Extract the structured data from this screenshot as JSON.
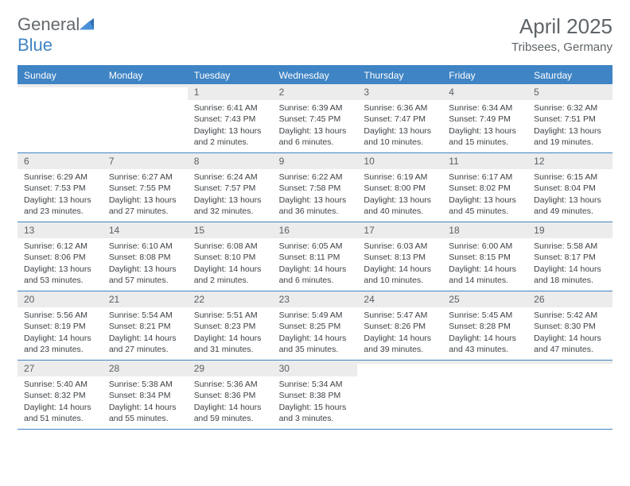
{
  "brand": {
    "part1": "General",
    "part2": "Blue"
  },
  "title": "April 2025",
  "location": "Tribsees, Germany",
  "colors": {
    "accent": "#3f84c4",
    "header_text": "#5f6569",
    "cell_bg_num": "#ececec",
    "text": "#3d4246"
  },
  "daynames": [
    "Sunday",
    "Monday",
    "Tuesday",
    "Wednesday",
    "Thursday",
    "Friday",
    "Saturday"
  ],
  "weeks": [
    [
      {
        "n": "",
        "sr": "",
        "ss": "",
        "dl": ""
      },
      {
        "n": "",
        "sr": "",
        "ss": "",
        "dl": ""
      },
      {
        "n": "1",
        "sr": "Sunrise: 6:41 AM",
        "ss": "Sunset: 7:43 PM",
        "dl": "Daylight: 13 hours and 2 minutes."
      },
      {
        "n": "2",
        "sr": "Sunrise: 6:39 AM",
        "ss": "Sunset: 7:45 PM",
        "dl": "Daylight: 13 hours and 6 minutes."
      },
      {
        "n": "3",
        "sr": "Sunrise: 6:36 AM",
        "ss": "Sunset: 7:47 PM",
        "dl": "Daylight: 13 hours and 10 minutes."
      },
      {
        "n": "4",
        "sr": "Sunrise: 6:34 AM",
        "ss": "Sunset: 7:49 PM",
        "dl": "Daylight: 13 hours and 15 minutes."
      },
      {
        "n": "5",
        "sr": "Sunrise: 6:32 AM",
        "ss": "Sunset: 7:51 PM",
        "dl": "Daylight: 13 hours and 19 minutes."
      }
    ],
    [
      {
        "n": "6",
        "sr": "Sunrise: 6:29 AM",
        "ss": "Sunset: 7:53 PM",
        "dl": "Daylight: 13 hours and 23 minutes."
      },
      {
        "n": "7",
        "sr": "Sunrise: 6:27 AM",
        "ss": "Sunset: 7:55 PM",
        "dl": "Daylight: 13 hours and 27 minutes."
      },
      {
        "n": "8",
        "sr": "Sunrise: 6:24 AM",
        "ss": "Sunset: 7:57 PM",
        "dl": "Daylight: 13 hours and 32 minutes."
      },
      {
        "n": "9",
        "sr": "Sunrise: 6:22 AM",
        "ss": "Sunset: 7:58 PM",
        "dl": "Daylight: 13 hours and 36 minutes."
      },
      {
        "n": "10",
        "sr": "Sunrise: 6:19 AM",
        "ss": "Sunset: 8:00 PM",
        "dl": "Daylight: 13 hours and 40 minutes."
      },
      {
        "n": "11",
        "sr": "Sunrise: 6:17 AM",
        "ss": "Sunset: 8:02 PM",
        "dl": "Daylight: 13 hours and 45 minutes."
      },
      {
        "n": "12",
        "sr": "Sunrise: 6:15 AM",
        "ss": "Sunset: 8:04 PM",
        "dl": "Daylight: 13 hours and 49 minutes."
      }
    ],
    [
      {
        "n": "13",
        "sr": "Sunrise: 6:12 AM",
        "ss": "Sunset: 8:06 PM",
        "dl": "Daylight: 13 hours and 53 minutes."
      },
      {
        "n": "14",
        "sr": "Sunrise: 6:10 AM",
        "ss": "Sunset: 8:08 PM",
        "dl": "Daylight: 13 hours and 57 minutes."
      },
      {
        "n": "15",
        "sr": "Sunrise: 6:08 AM",
        "ss": "Sunset: 8:10 PM",
        "dl": "Daylight: 14 hours and 2 minutes."
      },
      {
        "n": "16",
        "sr": "Sunrise: 6:05 AM",
        "ss": "Sunset: 8:11 PM",
        "dl": "Daylight: 14 hours and 6 minutes."
      },
      {
        "n": "17",
        "sr": "Sunrise: 6:03 AM",
        "ss": "Sunset: 8:13 PM",
        "dl": "Daylight: 14 hours and 10 minutes."
      },
      {
        "n": "18",
        "sr": "Sunrise: 6:00 AM",
        "ss": "Sunset: 8:15 PM",
        "dl": "Daylight: 14 hours and 14 minutes."
      },
      {
        "n": "19",
        "sr": "Sunrise: 5:58 AM",
        "ss": "Sunset: 8:17 PM",
        "dl": "Daylight: 14 hours and 18 minutes."
      }
    ],
    [
      {
        "n": "20",
        "sr": "Sunrise: 5:56 AM",
        "ss": "Sunset: 8:19 PM",
        "dl": "Daylight: 14 hours and 23 minutes."
      },
      {
        "n": "21",
        "sr": "Sunrise: 5:54 AM",
        "ss": "Sunset: 8:21 PM",
        "dl": "Daylight: 14 hours and 27 minutes."
      },
      {
        "n": "22",
        "sr": "Sunrise: 5:51 AM",
        "ss": "Sunset: 8:23 PM",
        "dl": "Daylight: 14 hours and 31 minutes."
      },
      {
        "n": "23",
        "sr": "Sunrise: 5:49 AM",
        "ss": "Sunset: 8:25 PM",
        "dl": "Daylight: 14 hours and 35 minutes."
      },
      {
        "n": "24",
        "sr": "Sunrise: 5:47 AM",
        "ss": "Sunset: 8:26 PM",
        "dl": "Daylight: 14 hours and 39 minutes."
      },
      {
        "n": "25",
        "sr": "Sunrise: 5:45 AM",
        "ss": "Sunset: 8:28 PM",
        "dl": "Daylight: 14 hours and 43 minutes."
      },
      {
        "n": "26",
        "sr": "Sunrise: 5:42 AM",
        "ss": "Sunset: 8:30 PM",
        "dl": "Daylight: 14 hours and 47 minutes."
      }
    ],
    [
      {
        "n": "27",
        "sr": "Sunrise: 5:40 AM",
        "ss": "Sunset: 8:32 PM",
        "dl": "Daylight: 14 hours and 51 minutes."
      },
      {
        "n": "28",
        "sr": "Sunrise: 5:38 AM",
        "ss": "Sunset: 8:34 PM",
        "dl": "Daylight: 14 hours and 55 minutes."
      },
      {
        "n": "29",
        "sr": "Sunrise: 5:36 AM",
        "ss": "Sunset: 8:36 PM",
        "dl": "Daylight: 14 hours and 59 minutes."
      },
      {
        "n": "30",
        "sr": "Sunrise: 5:34 AM",
        "ss": "Sunset: 8:38 PM",
        "dl": "Daylight: 15 hours and 3 minutes."
      },
      {
        "n": "",
        "sr": "",
        "ss": "",
        "dl": ""
      },
      {
        "n": "",
        "sr": "",
        "ss": "",
        "dl": ""
      },
      {
        "n": "",
        "sr": "",
        "ss": "",
        "dl": ""
      }
    ]
  ]
}
